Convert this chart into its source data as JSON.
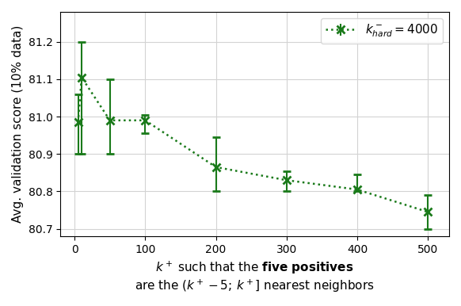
{
  "x": [
    5,
    10,
    50,
    100,
    200,
    300,
    400,
    500
  ],
  "y": [
    80.985,
    81.105,
    80.99,
    80.99,
    80.865,
    80.83,
    80.805,
    80.745
  ],
  "yerr_lower": [
    0.085,
    0.205,
    0.09,
    0.035,
    0.065,
    0.03,
    0.005,
    0.045
  ],
  "yerr_upper": [
    0.075,
    0.095,
    0.11,
    0.015,
    0.08,
    0.025,
    0.04,
    0.045
  ],
  "color": "#1a7a1a",
  "linestyle": "dotted",
  "marker": "x",
  "ylabel": "Avg. validation score (10% data)",
  "xlabel_line1": "$k^+$ such that the ",
  "xlabel_bold": "five positives",
  "xlabel_line2": "are the $(k^+ - 5; k^+]$ nearest neighbors",
  "legend_label": "$k^-_{hard} = 4000$",
  "ylim": [
    80.68,
    81.28
  ],
  "xlim": [
    -20,
    530
  ],
  "xticks": [
    0,
    100,
    200,
    300,
    400,
    500
  ],
  "yticks": [
    80.7,
    80.8,
    80.9,
    81.0,
    81.1,
    81.2
  ],
  "title_fontsize": 11,
  "label_fontsize": 11,
  "tick_fontsize": 10,
  "legend_fontsize": 11
}
